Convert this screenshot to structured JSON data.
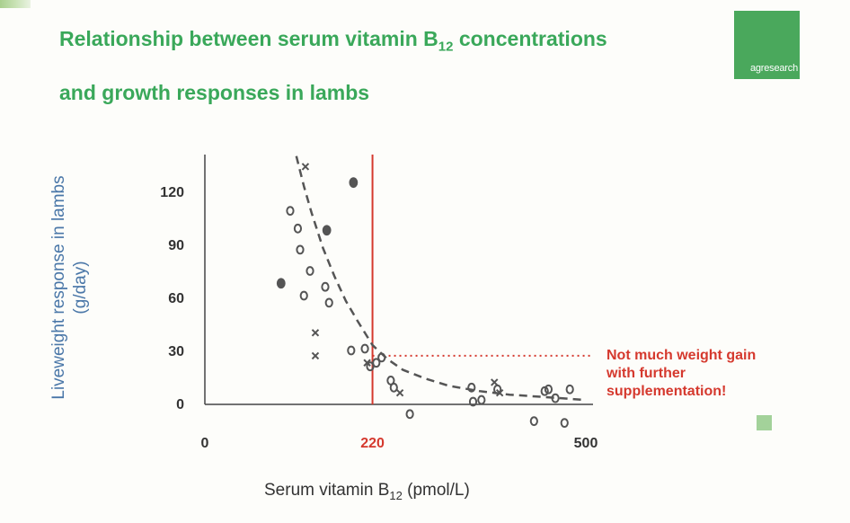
{
  "title_line1": "Relationship between serum vitamin B",
  "title_sub": "12",
  "title_line1_end": " concentrations",
  "title_line2": "and growth responses in lambs",
  "logo_text": "agresearch",
  "colors": {
    "title": "#3aa85a",
    "threshold": "#d5392e",
    "curve": "#555555",
    "markers": "#555555"
  },
  "chart_data": {
    "type": "scatter",
    "ylabel_line1": "Liveweight response in lambs",
    "ylabel_line2": "(g/day)",
    "xlabel_main": "Serum vitamin  B",
    "xlabel_sub": "12",
    "xlabel_end": " (pmol/L)",
    "x_ticks": [
      "0",
      "220",
      "500"
    ],
    "x_tick_values": [
      0,
      220,
      500
    ],
    "y_ticks": [
      "0",
      "30",
      "60",
      "90",
      "120"
    ],
    "y_tick_values": [
      0,
      30,
      60,
      90,
      120
    ],
    "xlim": [
      0,
      500
    ],
    "ylim": [
      0,
      130
    ],
    "grid": false,
    "threshold_x": 220,
    "plateau_y": 27,
    "annotation": [
      "Not much weight gain",
      "with further",
      "supplementation!"
    ],
    "series": [
      {
        "marker": "o",
        "points": [
          [
            112,
            109
          ],
          [
            125,
            87
          ],
          [
            122,
            99
          ],
          [
            138,
            75
          ],
          [
            130,
            61
          ],
          [
            158,
            66
          ],
          [
            163,
            57
          ],
          [
            192,
            30
          ],
          [
            210,
            31
          ],
          [
            217,
            21
          ],
          [
            225,
            23
          ],
          [
            232,
            26
          ],
          [
            244,
            13
          ],
          [
            248,
            9
          ],
          [
            269,
            -6
          ],
          [
            350,
            9
          ],
          [
            352,
            1
          ],
          [
            363,
            2
          ],
          [
            384,
            8
          ],
          [
            432,
            -10
          ],
          [
            446,
            7
          ],
          [
            451,
            8
          ],
          [
            460,
            3
          ],
          [
            472,
            -11
          ],
          [
            479,
            8
          ]
        ]
      },
      {
        "marker": "filled",
        "points": [
          [
            100,
            68
          ],
          [
            160,
            98
          ],
          [
            195,
            125
          ]
        ]
      },
      {
        "marker": "x",
        "points": [
          [
            132,
            134
          ],
          [
            145,
            40
          ],
          [
            145,
            27
          ],
          [
            213,
            23
          ],
          [
            256,
            6
          ],
          [
            380,
            12
          ],
          [
            387,
            6
          ]
        ]
      }
    ],
    "fit_curve": [
      [
        120,
        140
      ],
      [
        130,
        123
      ],
      [
        140,
        108
      ],
      [
        155,
        88
      ],
      [
        170,
        72
      ],
      [
        185,
        58
      ],
      [
        200,
        47
      ],
      [
        220,
        33
      ],
      [
        240,
        25
      ],
      [
        260,
        19
      ],
      [
        290,
        14
      ],
      [
        320,
        10
      ],
      [
        360,
        7
      ],
      [
        400,
        5
      ],
      [
        450,
        3.5
      ],
      [
        500,
        2
      ]
    ]
  }
}
